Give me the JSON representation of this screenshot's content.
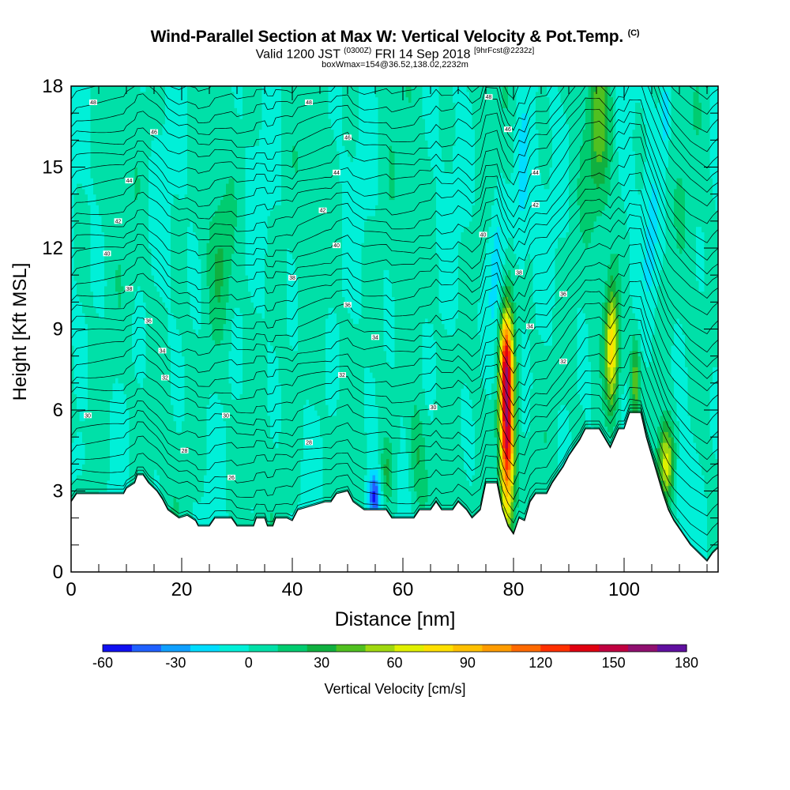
{
  "header": {
    "title": "Wind-Parallel Section at Max W: Vertical Velocity & Pot.Temp.",
    "title_badge": "(C)",
    "subtitle_main": "Valid 1200 JST",
    "subtitle_zulu": "(0300Z)",
    "subtitle_date": "FRI 14 Sep 2018",
    "subtitle_fcst": "[9hrFcst@2232z]",
    "info": "boxWmax=154@36.52,138.02,2232m"
  },
  "colors": {
    "background": "#ffffff",
    "terrain": "#ffffff",
    "contour_line": "#000000",
    "palette": [
      "#1010f0",
      "#2060ff",
      "#10a0ff",
      "#00ddff",
      "#00f0d8",
      "#00e0a8",
      "#00cc70",
      "#10b040",
      "#50c020",
      "#a0d810",
      "#e0f000",
      "#ffe000",
      "#ffc000",
      "#ff9c00",
      "#ff6a00",
      "#ff3000",
      "#e00010",
      "#c00040",
      "#901070",
      "#6010a0"
    ]
  },
  "chart_data": {
    "type": "heatmap",
    "xlabel": "Distance [nm]",
    "ylabel": "Height [Kft MSL]",
    "xlim": [
      0,
      117
    ],
    "ylim": [
      0,
      18
    ],
    "x_ticks": [
      "0",
      "20",
      "40",
      "60",
      "80",
      "100"
    ],
    "y_ticks": [
      "0",
      "3",
      "6",
      "9",
      "12",
      "15",
      "18"
    ],
    "colorbar": {
      "label": "Vertical Velocity [cm/s]",
      "min": -60,
      "max": 180,
      "step": 12,
      "tick_labels": [
        "-60",
        "-30",
        "0",
        "30",
        "60",
        "90",
        "120",
        "150",
        "180"
      ]
    },
    "terrain_profile": [
      [
        0,
        2.6
      ],
      [
        1,
        2.9
      ],
      [
        9.5,
        2.9
      ],
      [
        10,
        3.1
      ],
      [
        11.5,
        3.3
      ],
      [
        12,
        3.6
      ],
      [
        13,
        3.6
      ],
      [
        14,
        3.3
      ],
      [
        15.5,
        3.0
      ],
      [
        16.5,
        2.7
      ],
      [
        17.5,
        2.3
      ],
      [
        19.5,
        2.0
      ],
      [
        21,
        2.1
      ],
      [
        22.5,
        1.9
      ],
      [
        23,
        1.7
      ],
      [
        25,
        1.7
      ],
      [
        26,
        2.0
      ],
      [
        29,
        2.0
      ],
      [
        30,
        1.7
      ],
      [
        33,
        1.7
      ],
      [
        33.5,
        2.0
      ],
      [
        35,
        2.0
      ],
      [
        35.5,
        1.7
      ],
      [
        36.5,
        1.7
      ],
      [
        37,
        2.0
      ],
      [
        39,
        2.0
      ],
      [
        40,
        1.9
      ],
      [
        41,
        2.3
      ],
      [
        46,
        2.6
      ],
      [
        47,
        2.6
      ],
      [
        48,
        2.9
      ],
      [
        50,
        3.0
      ],
      [
        51,
        2.6
      ],
      [
        53,
        2.3
      ],
      [
        57,
        2.3
      ],
      [
        58,
        2.0
      ],
      [
        62,
        2.0
      ],
      [
        63,
        2.3
      ],
      [
        65,
        2.3
      ],
      [
        66,
        2.6
      ],
      [
        67,
        2.3
      ],
      [
        69,
        2.3
      ],
      [
        70,
        2.6
      ],
      [
        71.5,
        2.3
      ],
      [
        72.5,
        2.0
      ],
      [
        74,
        2.3
      ],
      [
        75,
        3.3
      ],
      [
        77,
        3.3
      ],
      [
        78,
        2.3
      ],
      [
        79,
        1.7
      ],
      [
        80,
        1.4
      ],
      [
        81,
        2.0
      ],
      [
        82,
        1.9
      ],
      [
        83,
        2.6
      ],
      [
        84,
        2.9
      ],
      [
        86,
        2.9
      ],
      [
        87,
        3.3
      ],
      [
        88,
        3.6
      ],
      [
        89,
        3.9
      ],
      [
        90,
        4.3
      ],
      [
        91,
        4.6
      ],
      [
        92,
        4.9
      ],
      [
        93,
        5.3
      ],
      [
        95.5,
        5.3
      ],
      [
        97.5,
        4.6
      ],
      [
        99,
        5.3
      ],
      [
        100,
        5.3
      ],
      [
        101,
        5.9
      ],
      [
        103,
        5.9
      ],
      [
        104,
        5.0
      ],
      [
        105,
        4.3
      ],
      [
        106,
        3.6
      ],
      [
        107,
        2.9
      ],
      [
        108,
        2.3
      ],
      [
        109,
        1.9
      ],
      [
        110,
        1.6
      ],
      [
        111,
        1.3
      ],
      [
        112,
        1.0
      ],
      [
        113,
        0.8
      ],
      [
        114,
        0.6
      ],
      [
        115,
        0.4
      ],
      [
        116,
        0.7
      ],
      [
        117,
        0.9
      ]
    ],
    "updraft_cores": [
      {
        "x": 78.8,
        "z": 5.5,
        "width_nm": 1.3,
        "depth_kft": 3.8,
        "w": 154
      },
      {
        "x": 78.6,
        "z": 8.0,
        "width_nm": 1.1,
        "depth_kft": 1.5,
        "w": 40
      },
      {
        "x": 97.8,
        "z": 8.3,
        "width_nm": 1.2,
        "depth_kft": 2.3,
        "w": 75
      },
      {
        "x": 102.0,
        "z": 7.2,
        "width_nm": 0.8,
        "depth_kft": 1.5,
        "w": 40
      },
      {
        "x": 107.6,
        "z": 4.0,
        "width_nm": 1.5,
        "depth_kft": 1.5,
        "w": 70
      },
      {
        "x": 95.5,
        "z": 16.5,
        "width_nm": 2.0,
        "depth_kft": 3.0,
        "w": 35
      },
      {
        "x": 27.0,
        "z": 11.5,
        "width_nm": 2.0,
        "depth_kft": 2.5,
        "w": 18
      },
      {
        "x": 62.5,
        "z": 4.2,
        "width_nm": 1.5,
        "depth_kft": 2.0,
        "w": 25
      },
      {
        "x": 57.0,
        "z": 3.6,
        "width_nm": 1.0,
        "depth_kft": 1.2,
        "w": 22
      }
    ],
    "downdraft_cores": [
      {
        "x": 54.8,
        "z": 2.8,
        "width_nm": 1.2,
        "depth_kft": 0.9,
        "w": -55
      },
      {
        "x": 77.0,
        "z": 11.2,
        "width_nm": 1.8,
        "depth_kft": 3.0,
        "w": -25
      },
      {
        "x": 81.5,
        "z": 14.0,
        "width_nm": 1.5,
        "depth_kft": 3.0,
        "w": -20
      },
      {
        "x": 107.5,
        "z": 17.0,
        "width_nm": 0.8,
        "depth_kft": 1.2,
        "w": -30
      },
      {
        "x": 105.0,
        "z": 12.0,
        "width_nm": 1.5,
        "depth_kft": 3.0,
        "w": -15
      },
      {
        "x": 1.0,
        "z": 4.0,
        "width_nm": 1.5,
        "depth_kft": 1.0,
        "w": -15
      },
      {
        "x": 110.0,
        "z": 3.5,
        "width_nm": 2.0,
        "depth_kft": 1.5,
        "w": -15
      }
    ],
    "contour_labels": [
      {
        "text": "48",
        "x": 4,
        "z": 17.4
      },
      {
        "text": "48",
        "x": 43,
        "z": 17.4
      },
      {
        "text": "48",
        "x": 75.5,
        "z": 17.6
      },
      {
        "text": "46",
        "x": 15,
        "z": 16.3
      },
      {
        "text": "46",
        "x": 50,
        "z": 16.1
      },
      {
        "text": "46",
        "x": 79,
        "z": 16.4
      },
      {
        "text": "44",
        "x": 10.5,
        "z": 14.5
      },
      {
        "text": "44",
        "x": 48,
        "z": 14.8
      },
      {
        "text": "44",
        "x": 84,
        "z": 14.8
      },
      {
        "text": "42",
        "x": 8.5,
        "z": 13.0
      },
      {
        "text": "42",
        "x": 45.5,
        "z": 13.4
      },
      {
        "text": "42",
        "x": 84,
        "z": 13.6
      },
      {
        "text": "40",
        "x": 6.5,
        "z": 11.8
      },
      {
        "text": "40",
        "x": 48,
        "z": 12.1
      },
      {
        "text": "40",
        "x": 74.5,
        "z": 12.5
      },
      {
        "text": "38",
        "x": 10.5,
        "z": 10.5
      },
      {
        "text": "38",
        "x": 40,
        "z": 10.9
      },
      {
        "text": "38",
        "x": 81,
        "z": 11.1
      },
      {
        "text": "36",
        "x": 14,
        "z": 9.3
      },
      {
        "text": "36",
        "x": 50,
        "z": 9.9
      },
      {
        "text": "36",
        "x": 89,
        "z": 10.3
      },
      {
        "text": "34",
        "x": 16.5,
        "z": 8.2
      },
      {
        "text": "34",
        "x": 55,
        "z": 8.7
      },
      {
        "text": "34",
        "x": 83,
        "z": 9.1
      },
      {
        "text": "32",
        "x": 17,
        "z": 7.2
      },
      {
        "text": "32",
        "x": 49,
        "z": 7.3
      },
      {
        "text": "32",
        "x": 89,
        "z": 7.8
      },
      {
        "text": "30",
        "x": 3,
        "z": 5.8
      },
      {
        "text": "30",
        "x": 28,
        "z": 5.8
      },
      {
        "text": "30",
        "x": 65.5,
        "z": 6.1
      },
      {
        "text": "28",
        "x": 20.5,
        "z": 4.5
      },
      {
        "text": "28",
        "x": 43,
        "z": 4.8
      },
      {
        "text": "26",
        "x": 29,
        "z": 3.5
      }
    ]
  }
}
